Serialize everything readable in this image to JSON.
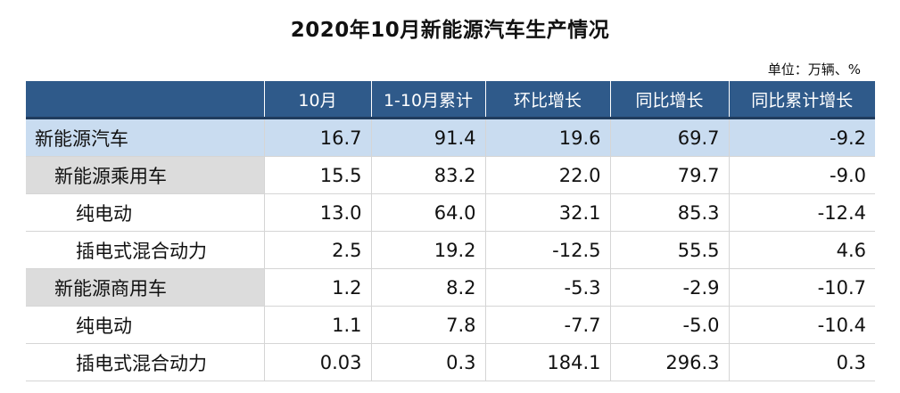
{
  "title": "2020年10月新能源汽车生产情况",
  "unit": "单位：万辆、%",
  "table": {
    "headers": [
      "",
      "10月",
      "1-10月累计",
      "环比增长",
      "同比增长",
      "同比累计增长"
    ],
    "rows": [
      {
        "label": "新能源汽车",
        "values": [
          "16.7",
          "91.4",
          "19.6",
          "69.7",
          "-9.2"
        ]
      },
      {
        "label": "新能源乘用车",
        "values": [
          "15.5",
          "83.2",
          "22.0",
          "79.7",
          "-9.0"
        ]
      },
      {
        "label": "纯电动",
        "values": [
          "13.0",
          "64.0",
          "32.1",
          "85.3",
          "-12.4"
        ]
      },
      {
        "label": "插电式混合动力",
        "values": [
          "2.5",
          "19.2",
          "-12.5",
          "55.5",
          "4.6"
        ]
      },
      {
        "label": "新能源商用车",
        "values": [
          "1.2",
          "8.2",
          "-5.3",
          "-2.9",
          "-10.7"
        ]
      },
      {
        "label": "纯电动",
        "values": [
          "1.1",
          "7.8",
          "-7.7",
          "-5.0",
          "-10.4"
        ]
      },
      {
        "label": "插电式混合动力",
        "values": [
          "0.03",
          "0.3",
          "184.1",
          "296.3",
          "0.3"
        ]
      }
    ]
  },
  "colors": {
    "header_bg": "#2f5a8a",
    "total_row_bg": "#c9dcf0",
    "category_label_bg": "#dcdcdc"
  }
}
